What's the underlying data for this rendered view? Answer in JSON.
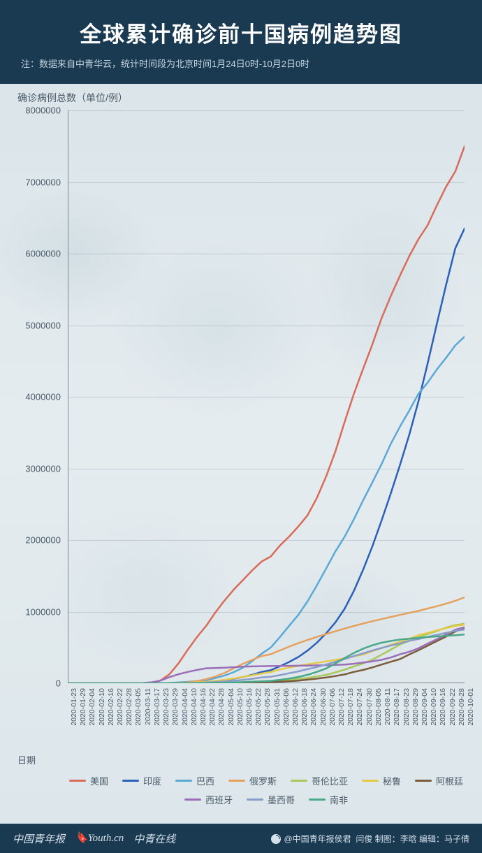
{
  "header": {
    "title": "全球累计确诊前十国病例趋势图",
    "subtitle": "注：数据来自中青华云，统计时间段为北京时间1月24日0时-10月2日0时"
  },
  "chart": {
    "type": "line",
    "y_axis": {
      "label": "确诊病例总数（单位/例）",
      "min": 0,
      "max": 8000000,
      "tick_step": 1000000,
      "ticks": [
        "0",
        "1000000",
        "2000000",
        "3000000",
        "4000000",
        "5000000",
        "6000000",
        "7000000",
        "8000000"
      ],
      "label_fontsize": 14,
      "tick_fontsize": 13,
      "tick_color": "#4a5a68"
    },
    "x_axis": {
      "label": "日期",
      "ticks": [
        "2020-01-23",
        "2020-01-29",
        "2020-02-04",
        "2020-02-10",
        "2020-02-16",
        "2020-02-22",
        "2020-02-28",
        "2020-03-05",
        "2020-03-11",
        "2020-03-17",
        "2020-03-23",
        "2020-03-29",
        "2020-04-04",
        "2020-04-10",
        "2020-04-16",
        "2020-04-22",
        "2020-04-28",
        "2020-05-04",
        "2020-05-10",
        "2020-05-16",
        "2020-05-22",
        "2020-05-28",
        "2020-05-31",
        "2020-06-06",
        "2020-06-12",
        "2020-06-18",
        "2020-06-24",
        "2020-06-30",
        "2020-07-06",
        "2020-07-12",
        "2020-07-18",
        "2020-07-24",
        "2020-07-30",
        "2020-08-05",
        "2020-08-11",
        "2020-08-17",
        "2020-08-23",
        "2020-08-29",
        "2020-09-04",
        "2020-09-10",
        "2020-09-16",
        "2020-09-22",
        "2020-09-28",
        "2020-10-01"
      ],
      "label_fontsize": 13,
      "tick_fontsize": 10.5,
      "tick_rotation": -90,
      "tick_color": "#4a5a68"
    },
    "grid_color": "rgba(120,140,155,0.3)",
    "axis_color": "#7a8a95",
    "background": "transparent",
    "line_width": 2.5,
    "series": [
      {
        "name": "美国",
        "color": "#d96b5a",
        "values": [
          0,
          5,
          11,
          12,
          15,
          35,
          62,
          159,
          1004,
          4661,
          35070,
          122666,
          277161,
          466033,
          644089,
          800926,
          988469,
          1158041,
          1309541,
          1443397,
          1577147,
          1699176,
          1770165,
          1923432,
          2048986,
          2191053,
          2347022,
          2590582,
          2888729,
          3236130,
          3647715,
          4038864,
          4388566,
          4728239,
          5094565,
          5404115,
          5690244,
          5961094,
          6200181,
          6397547,
          6674411,
          6933548,
          7147241,
          7500000
        ]
      },
      {
        "name": "印度",
        "color": "#2b5fb8",
        "values": [
          0,
          0,
          3,
          3,
          3,
          3,
          3,
          30,
          62,
          137,
          471,
          1024,
          3082,
          6725,
          12759,
          20471,
          29974,
          42836,
          62939,
          85940,
          118447,
          158333,
          182143,
          236657,
          297535,
          366946,
          456183,
          566840,
          697413,
          849553,
          1038716,
          1288108,
          1581963,
          1908254,
          2268675,
          2647663,
          3044940,
          3463972,
          3936747,
          4465863,
          5020359,
          5562663,
          6074702,
          6350000
        ]
      },
      {
        "name": "巴西",
        "color": "#5aa8d6",
        "values": [
          0,
          0,
          0,
          0,
          0,
          0,
          1,
          8,
          52,
          291,
          1924,
          4256,
          10360,
          19638,
          30425,
          45757,
          71886,
          108266,
          156061,
          218223,
          310087,
          411821,
          498440,
          645771,
          802828,
          955377,
          1145906,
          1368195,
          1603055,
          1839850,
          2046328,
          2287475,
          2552265,
          2801921,
          3057470,
          3340197,
          3582362,
          3804803,
          4041638,
          4197889,
          4382263,
          4544629,
          4717991,
          4840000
        ]
      },
      {
        "name": "俄罗斯",
        "color": "#e6a15c",
        "values": [
          0,
          0,
          2,
          2,
          2,
          2,
          5,
          10,
          28,
          114,
          438,
          1836,
          4731,
          11917,
          27938,
          57999,
          93558,
          145268,
          209688,
          272043,
          326448,
          379051,
          405843,
          458102,
          510761,
          560321,
          605319,
          646929,
          686852,
          726036,
          764215,
          799499,
          833042,
          864948,
          895691,
          925558,
          954328,
          982573,
          1009995,
          1042836,
          1075485,
          1111157,
          1151438,
          1200000
        ]
      },
      {
        "name": "哥伦比亚",
        "color": "#a8c85a",
        "values": [
          0,
          0,
          0,
          0,
          0,
          0,
          0,
          0,
          1,
          65,
          277,
          702,
          1406,
          2473,
          3233,
          4356,
          5949,
          7973,
          11063,
          14939,
          19131,
          24141,
          26734,
          36759,
          46858,
          60217,
          73760,
          95269,
          117110,
          150445,
          190700,
          233541,
          276055,
          327850,
          397623,
          468332,
          541139,
          590492,
          641574,
          686851,
          728590,
          777537,
          813056,
          830000
        ]
      },
      {
        "name": "秘鲁",
        "color": "#e6c84a",
        "values": [
          0,
          0,
          0,
          0,
          0,
          0,
          0,
          1,
          17,
          117,
          395,
          950,
          2281,
          5897,
          12491,
          19250,
          31190,
          47372,
          67307,
          88541,
          111698,
          135905,
          155671,
          191758,
          220749,
          244388,
          264689,
          285213,
          305703,
          326326,
          349500,
          375961,
          400683,
          447624,
          489680,
          535946,
          576067,
          621997,
          670145,
          702776,
          738020,
          768895,
          800142,
          820000
        ]
      },
      {
        "name": "阿根廷",
        "color": "#7a5c3a",
        "values": [
          0,
          0,
          0,
          0,
          0,
          0,
          0,
          1,
          19,
          79,
          301,
          820,
          1451,
          1975,
          2669,
          3288,
          4127,
          4887,
          6034,
          7805,
          10649,
          13933,
          16214,
          22020,
          28764,
          37497,
          49851,
          64530,
          80447,
          100166,
          122524,
          158321,
          185373,
          220682,
          260911,
          299126,
          336802,
          401239,
          461882,
          524198,
          589012,
          652174,
          723132,
          770000
        ]
      },
      {
        "name": "西班牙",
        "color": "#9a6fb8",
        "values": [
          0,
          0,
          1,
          2,
          2,
          2,
          33,
          259,
          2277,
          11826,
          35136,
          85199,
          126168,
          158273,
          184948,
          208389,
          212917,
          218011,
          224350,
          231350,
          234824,
          237906,
          239638,
          241550,
          243209,
          245268,
          247086,
          249271,
          251789,
          255953,
          260255,
          272421,
          288522,
          305767,
          326612,
          359082,
          404229,
          439286,
          488513,
          554143,
          614360,
          682267,
          748266,
          780000
        ]
      },
      {
        "name": "墨西哥",
        "color": "#8a9cc8",
        "values": [
          0,
          0,
          0,
          0,
          0,
          0,
          3,
          5,
          11,
          93,
          367,
          993,
          1890,
          3844,
          6297,
          10544,
          16752,
          24905,
          35022,
          47144,
          62527,
          81400,
          90664,
          113619,
          139196,
          165455,
          196847,
          226089,
          261750,
          299750,
          338913,
          378285,
          416179,
          456100,
          492522,
          525733,
          556216,
          591712,
          616894,
          647507,
          676487,
          703733,
          730317,
          750000
        ]
      },
      {
        "name": "南非",
        "color": "#4aa88a",
        "values": [
          0,
          0,
          0,
          0,
          0,
          0,
          0,
          1,
          17,
          85,
          402,
          1280,
          1655,
          2028,
          2783,
          3953,
          5350,
          7572,
          10652,
          15515,
          21343,
          27403,
          32683,
          48285,
          65736,
          87715,
          118375,
          159333,
          205721,
          276242,
          350879,
          421996,
          482169,
          529877,
          566109,
          589886,
          609773,
          622551,
          633015,
          644438,
          653444,
          661936,
          670766,
          680000
        ]
      }
    ]
  },
  "legend": {
    "items": [
      {
        "label": "美国",
        "color": "#d96b5a"
      },
      {
        "label": "印度",
        "color": "#2b5fb8"
      },
      {
        "label": "巴西",
        "color": "#5aa8d6"
      },
      {
        "label": "俄罗斯",
        "color": "#e6a15c"
      },
      {
        "label": "哥伦比亚",
        "color": "#a8c85a"
      },
      {
        "label": "秘鲁",
        "color": "#e6c84a"
      },
      {
        "label": "阿根廷",
        "color": "#7a5c3a"
      },
      {
        "label": "西班牙",
        "color": "#9a6fb8"
      },
      {
        "label": "墨西哥",
        "color": "#8a9cc8"
      },
      {
        "label": "南非",
        "color": "#4aa88a"
      }
    ],
    "fontsize": 13,
    "swatch_width": 24
  },
  "footer": {
    "logos": [
      "中国青年报",
      "Youth.cn",
      "中青在线"
    ],
    "weibo": "@中国青年报侯君",
    "credits": "闫俊 制图：李晗 编辑：马子倩"
  }
}
